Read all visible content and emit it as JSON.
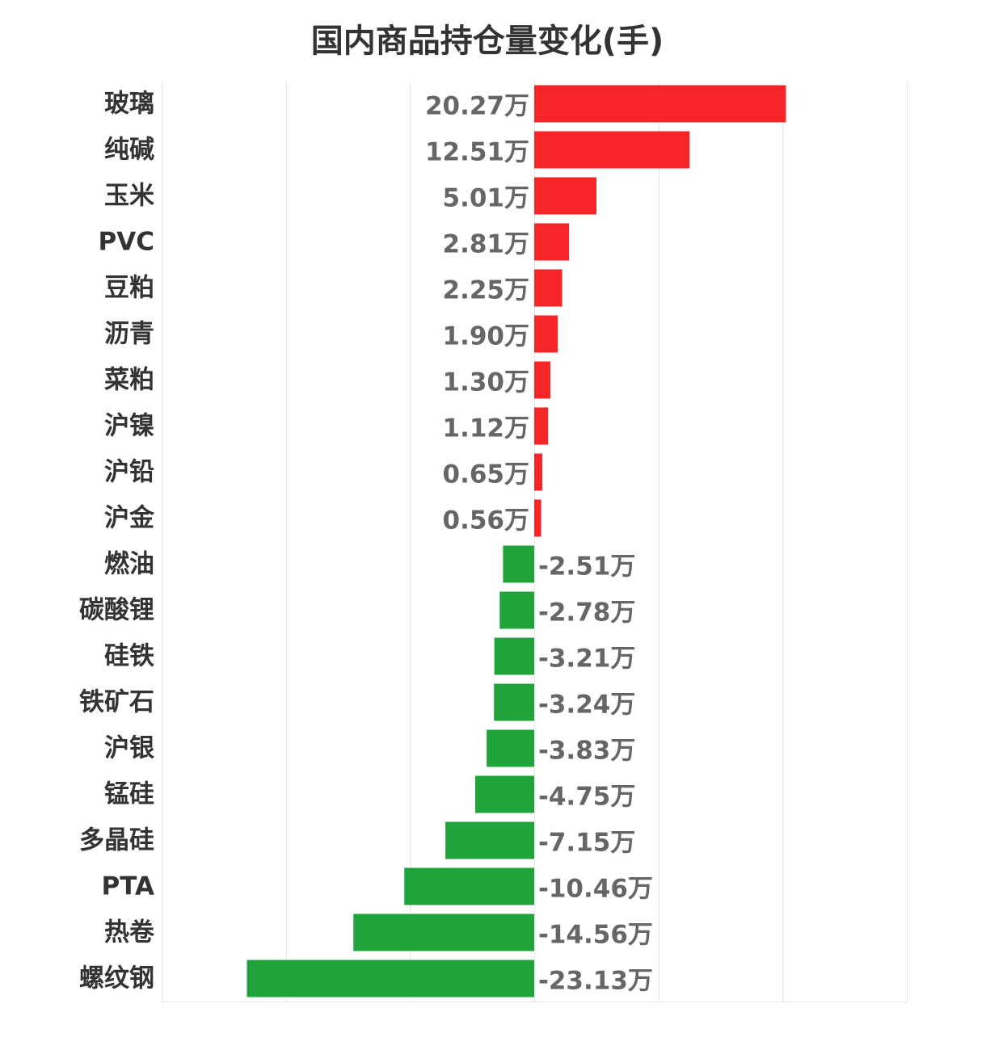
{
  "chart_data": {
    "type": "bar",
    "orientation": "horizontal",
    "title": "国内商品持仓量变化(手)",
    "unit_suffix": "万",
    "categories": [
      "玻璃",
      "纯碱",
      "玉米",
      "PVC",
      "豆粕",
      "沥青",
      "菜粕",
      "沪镍",
      "沪铅",
      "沪金",
      "燃油",
      "碳酸锂",
      "硅铁",
      "铁矿石",
      "沪银",
      "锰硅",
      "多晶硅",
      "PTA",
      "热卷",
      "螺纹钢"
    ],
    "values": [
      20.27,
      12.51,
      5.01,
      2.81,
      2.25,
      1.9,
      1.3,
      1.12,
      0.65,
      0.56,
      -2.51,
      -2.78,
      -3.21,
      -3.24,
      -3.83,
      -4.75,
      -7.15,
      -10.46,
      -14.56,
      -23.13
    ],
    "value_labels": [
      "20.27万",
      "12.51万",
      "5.01万",
      "2.81万",
      "2.25万",
      "1.90万",
      "1.30万",
      "1.12万",
      "0.65万",
      "0.56万",
      "-2.51万",
      "-2.78万",
      "-3.21万",
      "-3.24万",
      "-3.83万",
      "-4.75万",
      "-7.15万",
      "-10.46万",
      "-14.56万",
      "-23.13万"
    ],
    "xlim": [
      -30,
      30
    ],
    "x_grid_step": 10,
    "grid": true,
    "legend": "none",
    "colors": {
      "positive": "#f52528",
      "negative": "#21a33b",
      "grid": "#e6e6e6"
    }
  }
}
